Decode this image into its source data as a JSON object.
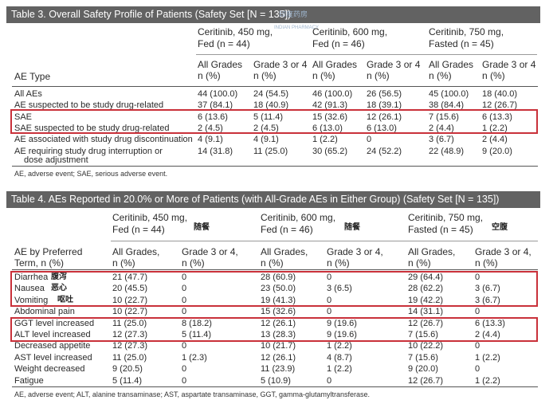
{
  "table3": {
    "title": "Table 3. Overall Safety Profile of Patients (Safety Set [N = 135])",
    "groups": [
      "Ceritinib, 450 mg,",
      "Fed (n = 44)",
      "Ceritinib, 600 mg,",
      "Fed (n = 46)",
      "Ceritinib, 750 mg,",
      "Fasted (n = 45)"
    ],
    "row_header": "AE Type",
    "sub_all": [
      "All Grades",
      "n (%)"
    ],
    "sub_g3": [
      "Grade 3 or 4",
      "n (%)"
    ],
    "rows": [
      {
        "label": "All AEs",
        "cells": [
          "44 (100.0)",
          "24 (54.5)",
          "46 (100.0)",
          "26 (56.5)",
          "45 (100.0)",
          "18 (40.0)"
        ]
      },
      {
        "label": "AE suspected to be study drug-related",
        "cells": [
          "37 (84.1)",
          "18 (40.9)",
          "42 (91.3)",
          "18 (39.1)",
          "38 (84.4)",
          "12 (26.7)"
        ]
      },
      {
        "label": "SAE",
        "cells": [
          "6 (13.6)",
          "5 (11.4)",
          "15 (32.6)",
          "12 (26.1)",
          "7 (15.6)",
          "6 (13.3)"
        ]
      },
      {
        "label": "SAE suspected to be study drug-related",
        "cells": [
          "2 (4.5)",
          "2 (4.5)",
          "6 (13.0)",
          "6 (13.0)",
          "2 (4.4)",
          "1 (2.2)"
        ]
      },
      {
        "label": "AE associated with study drug discontinuation",
        "cells": [
          "4 (9.1)",
          "4 (9.1)",
          "1 (2.2)",
          "0",
          "3 (6.7)",
          "2 (4.4)"
        ]
      },
      {
        "label": "AE requiring study drug interruption or",
        "cells": [
          "14 (31.8)",
          "11 (25.0)",
          "30 (65.2)",
          "24 (52.2)",
          "22 (48.9)",
          "9 (20.0)"
        ]
      }
    ],
    "row_cont": "dose adjustment",
    "footnote": "AE, adverse event; SAE, serious adverse event."
  },
  "table4": {
    "title": "Table 4. AEs Reported in 20.0% or More of Patients (with All-Grade AEs in Either Group) (Safety Set [N = 135])",
    "groups": [
      "Ceritinib, 450 mg,",
      "Fed (n = 44)",
      "Ceritinib, 600 mg,",
      "Fed (n = 46)",
      "Ceritinib, 750 mg,",
      "Fasted (n = 45)"
    ],
    "group_notes": [
      "随餐",
      "随餐",
      "空腹"
    ],
    "row_header": [
      "AE by Preferred",
      "Term, n (%)"
    ],
    "sub_all": [
      "All Grades,",
      "n (%)"
    ],
    "sub_g3": [
      "Grade 3 or 4,",
      "n (%)"
    ],
    "rows": [
      {
        "label": "Diarrhea",
        "note": "腹泻",
        "cells": [
          "21 (47.7)",
          "0",
          "28 (60.9)",
          "0",
          "29 (64.4)",
          "0"
        ]
      },
      {
        "label": "Nausea",
        "note": "恶心",
        "cells": [
          "20 (45.5)",
          "0",
          "23 (50.0)",
          "3 (6.5)",
          "28 (62.2)",
          "3 (6.7)"
        ]
      },
      {
        "label": "Vomiting",
        "note": "呕吐",
        "cells": [
          "10 (22.7)",
          "0",
          "19 (41.3)",
          "0",
          "19 (42.2)",
          "3 (6.7)"
        ]
      },
      {
        "label": "Abdominal pain",
        "note": "",
        "cells": [
          "10 (22.7)",
          "0",
          "15 (32.6)",
          "0",
          "14 (31.1)",
          "0"
        ]
      },
      {
        "label": "GGT level increased",
        "note": "",
        "cells": [
          "11 (25.0)",
          "8 (18.2)",
          "12 (26.1)",
          "9 (19.6)",
          "12 (26.7)",
          "6 (13.3)"
        ]
      },
      {
        "label": "ALT level increased",
        "note": "",
        "cells": [
          "12 (27.3)",
          "5 (11.4)",
          "13 (28.3)",
          "9 (19.6)",
          "7 (15.6)",
          "2 (4.4)"
        ]
      },
      {
        "label": "Decreased appetite",
        "note": "",
        "cells": [
          "12 (27.3)",
          "0",
          "10 (21.7)",
          "1 (2.2)",
          "10 (22.2)",
          "0"
        ]
      },
      {
        "label": "AST level increased",
        "note": "",
        "cells": [
          "11 (25.0)",
          "1 (2.3)",
          "12 (26.1)",
          "4 (8.7)",
          "7 (15.6)",
          "1 (2.2)"
        ]
      },
      {
        "label": "Weight decreased",
        "note": "",
        "cells": [
          "9 (20.5)",
          "0",
          "11 (23.9)",
          "1 (2.2)",
          "9 (20.0)",
          "0"
        ]
      },
      {
        "label": "Fatigue",
        "note": "",
        "cells": [
          "5 (11.4)",
          "0",
          "5 (10.9)",
          "0",
          "12 (26.7)",
          "1 (2.2)"
        ]
      }
    ],
    "footnote": "AE, adverse event; ALT, alanine transaminase; AST, aspartate transaminase, GGT, gamma-glutamyltransferase."
  },
  "watermark": {
    "cn": "印度药房",
    "en": "INDIAN PHARMACY"
  },
  "colors": {
    "title_bar": "#626262",
    "highlight_box": "#c9313a"
  }
}
